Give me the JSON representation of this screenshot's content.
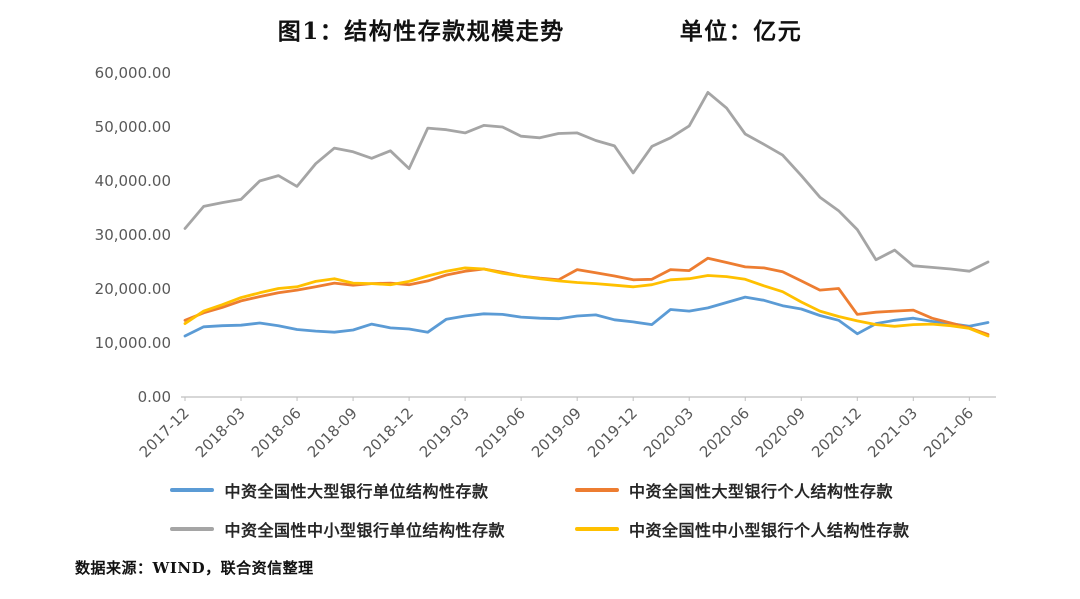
{
  "header": {
    "title": "图1：结构性存款规模走势",
    "unit_label": "单位：亿元"
  },
  "footer": {
    "source": "数据来源：WIND，联合资信整理"
  },
  "chart_data": {
    "type": "line",
    "title": "图1：结构性存款规模走势",
    "unit": "亿元",
    "grid": false,
    "legend_position": "bottom",
    "ylim": [
      0,
      60000
    ],
    "y_ticks": [
      0,
      10000,
      20000,
      30000,
      40000,
      50000,
      60000
    ],
    "x_tick_step": 3,
    "x_tick_labels": [
      "2017-12",
      "2018-03",
      "2018-06",
      "2018-09",
      "2018-12",
      "2019-03",
      "2019-06",
      "2019-09",
      "2019-12",
      "2020-03",
      "2020-06",
      "2020-09",
      "2020-12",
      "2021-03",
      "2021-06"
    ],
    "x": [
      "2017-12",
      "2018-01",
      "2018-02",
      "2018-03",
      "2018-04",
      "2018-05",
      "2018-06",
      "2018-07",
      "2018-08",
      "2018-09",
      "2018-10",
      "2018-11",
      "2018-12",
      "2019-01",
      "2019-02",
      "2019-03",
      "2019-04",
      "2019-05",
      "2019-06",
      "2019-07",
      "2019-08",
      "2019-09",
      "2019-10",
      "2019-11",
      "2019-12",
      "2020-01",
      "2020-02",
      "2020-03",
      "2020-04",
      "2020-05",
      "2020-06",
      "2020-07",
      "2020-08",
      "2020-09",
      "2020-10",
      "2020-11",
      "2020-12",
      "2021-01",
      "2021-02",
      "2021-03",
      "2021-04",
      "2021-05",
      "2021-06",
      "2021-07"
    ],
    "series": [
      {
        "name": "中资全国性大型银行单位结构性存款",
        "color": "#5B9BD5",
        "values": [
          11300,
          13000,
          13200,
          13300,
          13700,
          13200,
          12500,
          12200,
          12000,
          12400,
          13500,
          12800,
          12600,
          12000,
          14400,
          15000,
          15400,
          15300,
          14800,
          14600,
          14500,
          15000,
          15200,
          14300,
          13900,
          13400,
          16200,
          15900,
          16500,
          17500,
          18500,
          17900,
          16900,
          16300,
          15100,
          14200,
          11700,
          13600,
          14200,
          14600,
          14000,
          13600,
          13100,
          13800
        ]
      },
      {
        "name": "中资全国性大型银行个人结构性存款",
        "color": "#ED7D31",
        "values": [
          14200,
          15600,
          16600,
          17800,
          18600,
          19300,
          19800,
          20400,
          21100,
          20700,
          21000,
          21100,
          20800,
          21500,
          22600,
          23300,
          23700,
          23100,
          22400,
          22000,
          21700,
          23600,
          23000,
          22400,
          21700,
          21800,
          23600,
          23400,
          25700,
          24900,
          24100,
          23900,
          23200,
          21500,
          19800,
          20100,
          15300,
          15700,
          15900,
          16100,
          14600,
          13700,
          12800,
          11600
        ]
      },
      {
        "name": "中资全国性中小型银行单位结构性存款",
        "color": "#A5A5A5",
        "values": [
          31200,
          35300,
          36000,
          36600,
          40000,
          41000,
          39000,
          43200,
          46100,
          45400,
          44200,
          45600,
          42300,
          49800,
          49500,
          48900,
          50300,
          50000,
          48300,
          48000,
          48800,
          48900,
          47500,
          46500,
          41500,
          46400,
          48000,
          50200,
          56400,
          53500,
          48700,
          46800,
          44800,
          41000,
          37000,
          34500,
          31000,
          25400,
          27200,
          24300,
          24000,
          23700,
          23300,
          25000
        ]
      },
      {
        "name": "中资全国性中小型银行个人结构性存款",
        "color": "#FFC000",
        "values": [
          13600,
          15900,
          17100,
          18400,
          19300,
          20100,
          20400,
          21400,
          21900,
          21100,
          21000,
          20800,
          21400,
          22400,
          23300,
          23900,
          23700,
          22900,
          22400,
          21900,
          21500,
          21200,
          21000,
          20700,
          20400,
          20800,
          21700,
          21900,
          22500,
          22300,
          21800,
          20600,
          19500,
          17600,
          15900,
          14900,
          14100,
          13400,
          13100,
          13400,
          13500,
          13200,
          12700,
          11300
        ]
      }
    ]
  }
}
